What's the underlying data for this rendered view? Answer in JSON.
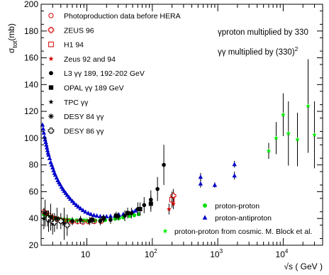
{
  "chart_data": {
    "type": "scatter",
    "title": "",
    "ylabel_parts": {
      "main": "σ",
      "sub": "tot",
      "unit": "(mb)"
    },
    "xlabel": "√s ( GeV )",
    "x_scale": "log",
    "xlim": [
      2.0,
      40000
    ],
    "ylim": [
      20,
      200
    ],
    "y_ticks": [
      20,
      40,
      60,
      80,
      100,
      120,
      140,
      160,
      180,
      200
    ],
    "x_tick_labels": [
      {
        "value": 10,
        "base": "10",
        "exp": ""
      },
      {
        "value": 100,
        "base": "10",
        "exp": "2"
      },
      {
        "value": 1000,
        "base": "10",
        "exp": "3"
      },
      {
        "value": 10000,
        "base": "10",
        "exp": "4"
      }
    ],
    "grid": false,
    "annotations": {
      "line1": "γproton multiplied by 330",
      "line2_main": "γγ multiplied by (330)",
      "line2_exp": "2"
    },
    "legend_left": [
      {
        "marker": "open-circle",
        "color": "#d40000",
        "label": "Photoproduction data before HERA"
      },
      {
        "marker": "open-cross",
        "color": "#d40000",
        "label": "ZEUS 96"
      },
      {
        "marker": "open-square",
        "color": "#d40000",
        "label": "H1 94"
      },
      {
        "marker": "star",
        "color": "#d40000",
        "label": "Zeus 92 and 94"
      },
      {
        "marker": "filled-circle",
        "color": "#000000",
        "label": "L3 γγ 189, 192-202 GeV"
      },
      {
        "marker": "filled-square",
        "color": "#000000",
        "label": "OPAL γγ 189 GeV"
      },
      {
        "marker": "star",
        "color": "#000000",
        "label": "TPC γγ"
      },
      {
        "marker": "asterisk",
        "color": "#000000",
        "label": "DESY 84 γγ"
      },
      {
        "marker": "open-cross",
        "color": "#000000",
        "label": "DESY 86 γγ"
      }
    ],
    "legend_right": [
      {
        "marker": "filled-circle",
        "color": "#00dd00",
        "label": "proton-proton"
      },
      {
        "marker": "triangle",
        "color": "#0000cc",
        "label": "proton-antiproton"
      },
      {
        "marker": "star",
        "color": "#00ee00",
        "label": "proton-proton from cosmic. M. Block et al."
      }
    ],
    "series": [
      {
        "name": "proton-antiproton",
        "marker": "triangle",
        "color": "#0000cc",
        "points": [
          {
            "x": 2.1,
            "y": 110
          },
          {
            "x": 2.15,
            "y": 107
          },
          {
            "x": 2.2,
            "y": 104
          },
          {
            "x": 2.25,
            "y": 101
          },
          {
            "x": 2.3,
            "y": 99
          },
          {
            "x": 2.35,
            "y": 97
          },
          {
            "x": 2.4,
            "y": 95
          },
          {
            "x": 2.45,
            "y": 93
          },
          {
            "x": 2.5,
            "y": 91
          },
          {
            "x": 2.55,
            "y": 89
          },
          {
            "x": 2.6,
            "y": 87.5
          },
          {
            "x": 2.7,
            "y": 85
          },
          {
            "x": 2.8,
            "y": 82
          },
          {
            "x": 2.9,
            "y": 80
          },
          {
            "x": 3.0,
            "y": 78
          },
          {
            "x": 3.1,
            "y": 76
          },
          {
            "x": 3.2,
            "y": 74
          },
          {
            "x": 3.3,
            "y": 72.5
          },
          {
            "x": 3.45,
            "y": 70.5
          },
          {
            "x": 3.6,
            "y": 68.5
          },
          {
            "x": 3.75,
            "y": 67
          },
          {
            "x": 3.9,
            "y": 65.5
          },
          {
            "x": 4.1,
            "y": 63.5
          },
          {
            "x": 4.3,
            "y": 62
          },
          {
            "x": 4.5,
            "y": 60.5
          },
          {
            "x": 4.75,
            "y": 59
          },
          {
            "x": 5.0,
            "y": 57.5
          },
          {
            "x": 5.3,
            "y": 56
          },
          {
            "x": 5.6,
            "y": 54.5
          },
          {
            "x": 6.0,
            "y": 53
          },
          {
            "x": 6.4,
            "y": 51.5
          },
          {
            "x": 6.9,
            "y": 50
          },
          {
            "x": 7.4,
            "y": 48.8
          },
          {
            "x": 8.0,
            "y": 47.5
          },
          {
            "x": 8.7,
            "y": 46.2
          },
          {
            "x": 9.5,
            "y": 45
          },
          {
            "x": 10.5,
            "y": 44
          },
          {
            "x": 11.5,
            "y": 43.2
          },
          {
            "x": 12.8,
            "y": 42.5
          },
          {
            "x": 14.2,
            "y": 42
          },
          {
            "x": 16,
            "y": 41.6
          },
          {
            "x": 18,
            "y": 41.4
          },
          {
            "x": 20,
            "y": 41.5
          },
          {
            "x": 23,
            "y": 41.8
          },
          {
            "x": 27,
            "y": 42.2
          },
          {
            "x": 31,
            "y": 42.6
          },
          {
            "x": 36,
            "y": 43.2
          },
          {
            "x": 42,
            "y": 44
          },
          {
            "x": 50,
            "y": 45
          },
          {
            "x": 55,
            "y": 45.8
          },
          {
            "x": 63,
            "y": 47
          },
          {
            "x": 546,
            "y": 66,
            "err": 3
          },
          {
            "x": 546,
            "y": 71,
            "err": 3
          },
          {
            "x": 900,
            "y": 65,
            "err": 2
          },
          {
            "x": 1800,
            "y": 72,
            "err": 3
          },
          {
            "x": 1800,
            "y": 80.5,
            "err": 2.5
          }
        ]
      },
      {
        "name": "proton-proton",
        "marker": "filled-circle",
        "color": "#00dd00",
        "points": [
          {
            "x": 2.2,
            "y": 43
          },
          {
            "x": 2.4,
            "y": 42
          },
          {
            "x": 2.6,
            "y": 41.5
          },
          {
            "x": 2.8,
            "y": 41
          },
          {
            "x": 3.0,
            "y": 40.5
          },
          {
            "x": 3.3,
            "y": 40.2
          },
          {
            "x": 3.6,
            "y": 40
          },
          {
            "x": 4.0,
            "y": 39.5
          },
          {
            "x": 4.5,
            "y": 39.2
          },
          {
            "x": 5.0,
            "y": 39
          },
          {
            "x": 5.5,
            "y": 38.8
          },
          {
            "x": 6.0,
            "y": 38.7
          },
          {
            "x": 7.0,
            "y": 38.6
          },
          {
            "x": 8.0,
            "y": 38.6
          },
          {
            "x": 9.0,
            "y": 38.5
          },
          {
            "x": 10,
            "y": 38.5
          },
          {
            "x": 11.5,
            "y": 38.4
          },
          {
            "x": 13.5,
            "y": 38.5
          },
          {
            "x": 16,
            "y": 38.6
          },
          {
            "x": 19,
            "y": 38.8
          },
          {
            "x": 23,
            "y": 39.2
          },
          {
            "x": 27,
            "y": 39.7
          },
          {
            "x": 31,
            "y": 40.2
          },
          {
            "x": 36,
            "y": 40.8
          },
          {
            "x": 45,
            "y": 41.8
          },
          {
            "x": 53,
            "y": 42.4
          },
          {
            "x": 62,
            "y": 43.2
          }
        ]
      },
      {
        "name": "proton-proton from cosmic. M. Block et al.",
        "marker": "star",
        "color": "#00ee00",
        "points": [
          {
            "x": 6000,
            "y": 90.5,
            "err": 6
          },
          {
            "x": 7800,
            "y": 100,
            "err": 12
          },
          {
            "x": 10000,
            "y": 117.5,
            "err": 16
          },
          {
            "x": 12000,
            "y": 103.5,
            "err": 24
          },
          {
            "x": 16500,
            "y": 99,
            "err": 20
          },
          {
            "x": 24000,
            "y": 124,
            "err": 35
          },
          {
            "x": 30000,
            "y": 102.5,
            "err": 25
          }
        ]
      },
      {
        "name": "Photoproduction data before HERA",
        "marker": "open-circle",
        "color": "#d40000",
        "points": [
          {
            "x": 2.2,
            "y": 45,
            "err": 2
          },
          {
            "x": 2.4,
            "y": 44,
            "err": 2
          },
          {
            "x": 2.6,
            "y": 42.5,
            "err": 2
          },
          {
            "x": 2.9,
            "y": 41,
            "err": 2
          },
          {
            "x": 3.3,
            "y": 40,
            "err": 2
          },
          {
            "x": 3.8,
            "y": 39,
            "err": 2
          },
          {
            "x": 4.4,
            "y": 38.5,
            "err": 1.5
          },
          {
            "x": 5.1,
            "y": 38,
            "err": 1.5
          },
          {
            "x": 6.0,
            "y": 37.5,
            "err": 1.5
          },
          {
            "x": 7.2,
            "y": 37.5,
            "err": 1.5
          },
          {
            "x": 8.7,
            "y": 37.2,
            "err": 1.5
          },
          {
            "x": 10.5,
            "y": 37.5,
            "err": 1.5
          },
          {
            "x": 13,
            "y": 37.6,
            "err": 1.5
          },
          {
            "x": 16.5,
            "y": 37.8,
            "err": 1.5
          }
        ]
      },
      {
        "name": "ZEUS 96",
        "marker": "open-cross",
        "color": "#d40000",
        "points": [
          {
            "x": 209,
            "y": 57,
            "err": 5
          }
        ]
      },
      {
        "name": "H1 94",
        "marker": "open-square",
        "color": "#d40000",
        "points": [
          {
            "x": 200,
            "y": 54,
            "err": 6
          }
        ]
      },
      {
        "name": "Zeus 92 and 94",
        "marker": "star",
        "color": "#d40000",
        "points": [
          {
            "x": 180,
            "y": 47,
            "err": 4
          },
          {
            "x": 210,
            "y": 51,
            "err": 4
          }
        ]
      },
      {
        "name": "L3 γγ 189, 192-202 GeV",
        "marker": "filled-circle",
        "color": "#000000",
        "points": [
          {
            "x": 6.0,
            "y": 38,
            "err": 3
          },
          {
            "x": 8.0,
            "y": 39,
            "err": 3
          },
          {
            "x": 11,
            "y": 38,
            "err": 3
          },
          {
            "x": 16,
            "y": 38,
            "err": 3
          },
          {
            "x": 23,
            "y": 39,
            "err": 3
          },
          {
            "x": 30,
            "y": 41.5,
            "err": 3
          },
          {
            "x": 38,
            "y": 42,
            "err": 4
          },
          {
            "x": 48,
            "y": 44,
            "err": 4
          },
          {
            "x": 60,
            "y": 47,
            "err": 5
          },
          {
            "x": 75,
            "y": 50,
            "err": 6
          },
          {
            "x": 95,
            "y": 54,
            "err": 7
          },
          {
            "x": 120,
            "y": 62,
            "err": 9
          },
          {
            "x": 150,
            "y": 80,
            "err": 15
          }
        ]
      },
      {
        "name": "OPAL γγ 189 GeV",
        "marker": "filled-square",
        "color": "#000000",
        "points": [
          {
            "x": 12,
            "y": 39,
            "err": 3
          },
          {
            "x": 18,
            "y": 40,
            "err": 3
          },
          {
            "x": 28,
            "y": 42,
            "err": 3
          },
          {
            "x": 42,
            "y": 44,
            "err": 4
          },
          {
            "x": 65,
            "y": 47,
            "err": 5
          },
          {
            "x": 95,
            "y": 51,
            "err": 6
          }
        ]
      },
      {
        "name": "TPC γγ",
        "marker": "star",
        "color": "#000000",
        "points": [
          {
            "x": 2.2,
            "y": 40,
            "err": 8
          },
          {
            "x": 2.6,
            "y": 38,
            "err": 8
          },
          {
            "x": 3.0,
            "y": 36,
            "err": 8
          }
        ]
      },
      {
        "name": "DESY 84 γγ",
        "marker": "asterisk",
        "color": "#000000",
        "points": [
          {
            "x": 2.3,
            "y": 44,
            "err": 10
          },
          {
            "x": 2.8,
            "y": 41,
            "err": 10
          },
          {
            "x": 3.5,
            "y": 40,
            "err": 8
          },
          {
            "x": 4.5,
            "y": 36,
            "err": 12
          }
        ]
      },
      {
        "name": "DESY 86 γγ",
        "marker": "open-cross",
        "color": "#000000",
        "points": [
          {
            "x": 2.5,
            "y": 40,
            "err": 6
          },
          {
            "x": 3.2,
            "y": 37,
            "err": 7
          },
          {
            "x": 4.0,
            "y": 38,
            "err": 6
          },
          {
            "x": 5.0,
            "y": 35,
            "err": 8
          }
        ]
      }
    ]
  }
}
